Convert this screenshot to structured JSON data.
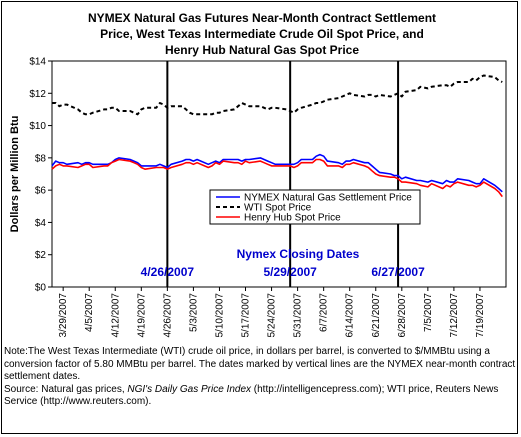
{
  "chart_data": {
    "type": "line",
    "title_lines": [
      "NYMEX Natural Gas Futures Near-Month Contract Settlement",
      "Price, West Texas Intermediate Crude Oil Spot Price, and",
      "Henry Hub Natural Gas Spot Price"
    ],
    "ylabel": "Dollars per Million Btu",
    "xlabel": "",
    "ylim": [
      0,
      14
    ],
    "y_ticks": [
      "$0",
      "$2",
      "$4",
      "$6",
      "$8",
      "$10",
      "$12",
      "$14"
    ],
    "x_tick_labels": [
      "3/29/2007",
      "4/5/2007",
      "4/12/2007",
      "4/19/2007",
      "4/26/2007",
      "5/3/2007",
      "5/10/2007",
      "5/17/2007",
      "5/24/2007",
      "5/31/2007",
      "6/7/2007",
      "6/14/2007",
      "6/21/2007",
      "6/28/2007",
      "7/5/2007",
      "7/12/2007",
      "7/19/2007"
    ],
    "grid": false,
    "legend_position": "right-middle",
    "x": [
      "3/26/2007",
      "3/27/2007",
      "3/28/2007",
      "3/29/2007",
      "3/30/2007",
      "4/2/2007",
      "4/3/2007",
      "4/4/2007",
      "4/5/2007",
      "4/6/2007",
      "4/9/2007",
      "4/10/2007",
      "4/11/2007",
      "4/12/2007",
      "4/13/2007",
      "4/16/2007",
      "4/17/2007",
      "4/18/2007",
      "4/19/2007",
      "4/20/2007",
      "4/23/2007",
      "4/24/2007",
      "4/25/2007",
      "4/26/2007",
      "4/27/2007",
      "4/30/2007",
      "5/1/2007",
      "5/2/2007",
      "5/3/2007",
      "5/4/2007",
      "5/7/2007",
      "5/8/2007",
      "5/9/2007",
      "5/10/2007",
      "5/11/2007",
      "5/14/2007",
      "5/15/2007",
      "5/16/2007",
      "5/17/2007",
      "5/18/2007",
      "5/21/2007",
      "5/22/2007",
      "5/23/2007",
      "5/24/2007",
      "5/25/2007",
      "5/28/2007",
      "5/29/2007",
      "5/30/2007",
      "5/31/2007",
      "6/1/2007",
      "6/4/2007",
      "6/5/2007",
      "6/6/2007",
      "6/7/2007",
      "6/8/2007",
      "6/11/2007",
      "6/12/2007",
      "6/13/2007",
      "6/14/2007",
      "6/15/2007",
      "6/18/2007",
      "6/19/2007",
      "6/20/2007",
      "6/21/2007",
      "6/22/2007",
      "6/25/2007",
      "6/26/2007",
      "6/27/2007",
      "6/28/2007",
      "6/29/2007",
      "7/2/2007",
      "7/3/2007",
      "7/5/2007",
      "7/6/2007",
      "7/9/2007",
      "7/10/2007",
      "7/11/2007",
      "7/12/2007",
      "7/13/2007",
      "7/16/2007",
      "7/17/2007",
      "7/18/2007",
      "7/19/2007",
      "7/20/2007",
      "7/23/2007",
      "7/24/2007",
      "7/25/2007"
    ],
    "series": [
      {
        "name": "NYMEX Natural Gas Settlement Price",
        "color": "#0000ff",
        "dash": "solid",
        "values": [
          7.5,
          7.8,
          7.7,
          7.7,
          7.6,
          7.7,
          7.6,
          7.7,
          7.7,
          7.6,
          7.6,
          7.6,
          7.7,
          7.9,
          8.0,
          7.9,
          7.8,
          7.7,
          7.5,
          7.5,
          7.5,
          7.6,
          7.5,
          7.4,
          7.6,
          7.8,
          7.9,
          7.9,
          7.8,
          7.9,
          7.6,
          7.7,
          7.8,
          7.7,
          7.9,
          7.9,
          7.9,
          7.8,
          7.9,
          7.9,
          8.0,
          7.9,
          7.8,
          7.7,
          7.6,
          7.6,
          7.6,
          7.6,
          7.7,
          7.9,
          7.9,
          8.1,
          8.2,
          8.1,
          7.8,
          7.7,
          7.6,
          7.8,
          7.8,
          7.9,
          7.7,
          7.7,
          7.5,
          7.3,
          7.1,
          7.0,
          6.9,
          6.9,
          6.7,
          6.8,
          6.6,
          6.6,
          6.5,
          6.6,
          6.4,
          6.6,
          6.5,
          6.5,
          6.7,
          6.6,
          6.5,
          6.4,
          6.4,
          6.7,
          6.3,
          6.1,
          5.9
        ]
      },
      {
        "name": "WTI Spot Price",
        "color": "#000000",
        "dash": "dashed",
        "values": [
          11.4,
          11.4,
          11.2,
          11.3,
          11.3,
          11.0,
          10.8,
          10.7,
          10.7,
          10.8,
          11.0,
          11.0,
          11.1,
          11.1,
          10.9,
          10.9,
          10.8,
          10.7,
          11.0,
          11.1,
          11.1,
          11.4,
          11.3,
          11.1,
          11.2,
          11.2,
          11.0,
          10.8,
          10.7,
          10.7,
          10.7,
          10.7,
          10.8,
          10.8,
          10.9,
          11.0,
          11.2,
          11.4,
          11.3,
          11.2,
          11.2,
          11.1,
          11.0,
          11.1,
          11.1,
          11.0,
          10.9,
          10.8,
          11.0,
          11.1,
          11.3,
          11.4,
          11.4,
          11.5,
          11.6,
          11.7,
          11.8,
          11.9,
          12.0,
          11.9,
          11.8,
          11.9,
          11.9,
          11.8,
          11.9,
          11.8,
          11.9,
          12.0,
          11.8,
          12.1,
          12.2,
          12.4,
          12.3,
          12.4,
          12.5,
          12.5,
          12.4,
          12.6,
          12.7,
          12.7,
          12.9,
          12.8,
          13.0,
          13.1,
          13.0,
          12.8,
          12.7
        ]
      },
      {
        "name": "Henry Hub Spot Price",
        "color": "#ff0000",
        "dash": "solid",
        "values": [
          7.3,
          7.5,
          7.6,
          7.5,
          7.5,
          7.4,
          7.5,
          7.6,
          7.6,
          7.4,
          7.5,
          7.5,
          7.7,
          7.8,
          7.9,
          7.8,
          7.7,
          7.6,
          7.4,
          7.3,
          7.4,
          7.4,
          7.4,
          7.3,
          7.4,
          7.6,
          7.7,
          7.7,
          7.6,
          7.7,
          7.4,
          7.5,
          7.7,
          7.6,
          7.8,
          7.7,
          7.7,
          7.6,
          7.8,
          7.7,
          7.8,
          7.7,
          7.6,
          7.5,
          7.5,
          7.5,
          7.5,
          7.4,
          7.5,
          7.7,
          7.7,
          7.9,
          7.9,
          7.8,
          7.5,
          7.5,
          7.4,
          7.6,
          7.6,
          7.7,
          7.5,
          7.4,
          7.2,
          7.0,
          6.9,
          6.8,
          6.8,
          6.7,
          6.5,
          6.5,
          6.4,
          6.3,
          6.2,
          6.4,
          6.1,
          6.3,
          6.2,
          6.4,
          6.5,
          6.3,
          6.3,
          6.2,
          6.3,
          6.5,
          6.1,
          5.9,
          5.6
        ]
      }
    ],
    "markers": {
      "caption": "Nymex Closing Dates",
      "dates": [
        "4/26/2007",
        "5/29/2007",
        "6/27/2007"
      ]
    }
  },
  "note": {
    "line1": "Note:The West Texas Intermediate (WTI) crude oil price, in dollars per barrel,  is converted to $/MMBtu using a conversion factor of 5.80 MMBtu per barrel.  The dates marked by vertical lines are the NYMEX near-month contract settlement dates.",
    "source_prefix": "Source: Natural gas prices, ",
    "source_italic": "NGI's Daily Gas Price Index",
    "source_suffix": " (http://intelligencepress.com); WTI price, Reuters News Service (http://www.reuters.com)."
  }
}
